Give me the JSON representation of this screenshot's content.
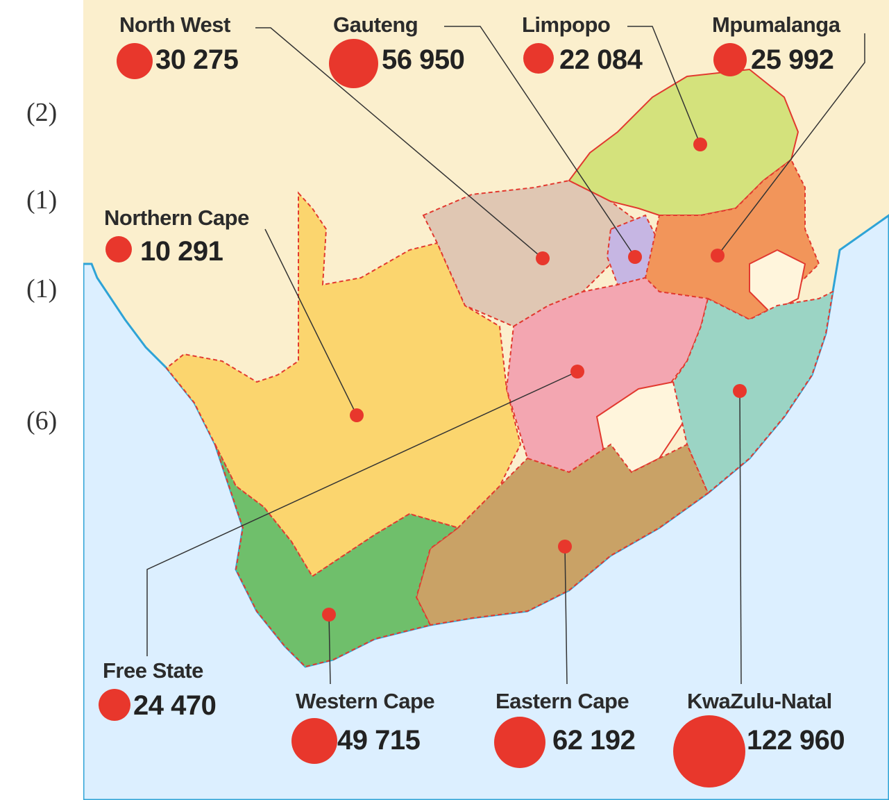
{
  "margin_marks": [
    "(2)",
    "(1)",
    "(1)",
    "(6)"
  ],
  "colors": {
    "land_bg": "#fbefcd",
    "sea": "#dcefff",
    "coast": "#2ea3d6",
    "border": "#e2392f",
    "dot": "#e8372c",
    "foreign_enclave": "#fff5dc"
  },
  "provinces": [
    {
      "key": "north_west",
      "name": "North West",
      "value": "30 275",
      "population": 30275,
      "color": "#e0c7b3"
    },
    {
      "key": "gauteng",
      "name": "Gauteng",
      "value": "56 950",
      "population": 56950,
      "color": "#c6b6e3"
    },
    {
      "key": "limpopo",
      "name": "Limpopo",
      "value": "22 084",
      "population": 22084,
      "color": "#d4e27c"
    },
    {
      "key": "mpumalanga",
      "name": "Mpumalanga",
      "value": "25 992",
      "population": 25992,
      "color": "#f2955a"
    },
    {
      "key": "northern_cape",
      "name": "Northern Cape",
      "value": "10 291",
      "population": 10291,
      "color": "#fbd56e"
    },
    {
      "key": "free_state",
      "name": "Free State",
      "value": "24 470",
      "population": 24470,
      "color": "#f3a6b1"
    },
    {
      "key": "western_cape",
      "name": "Western Cape",
      "value": "49 715",
      "population": 49715,
      "color": "#6fbf6b"
    },
    {
      "key": "eastern_cape",
      "name": "Eastern Cape",
      "value": "62 192",
      "population": 62192,
      "color": "#c9a266"
    },
    {
      "key": "kwazulu_natal",
      "name": "KwaZulu-Natal",
      "value": "122 960",
      "population": 122960,
      "color": "#9bd4c4"
    }
  ]
}
